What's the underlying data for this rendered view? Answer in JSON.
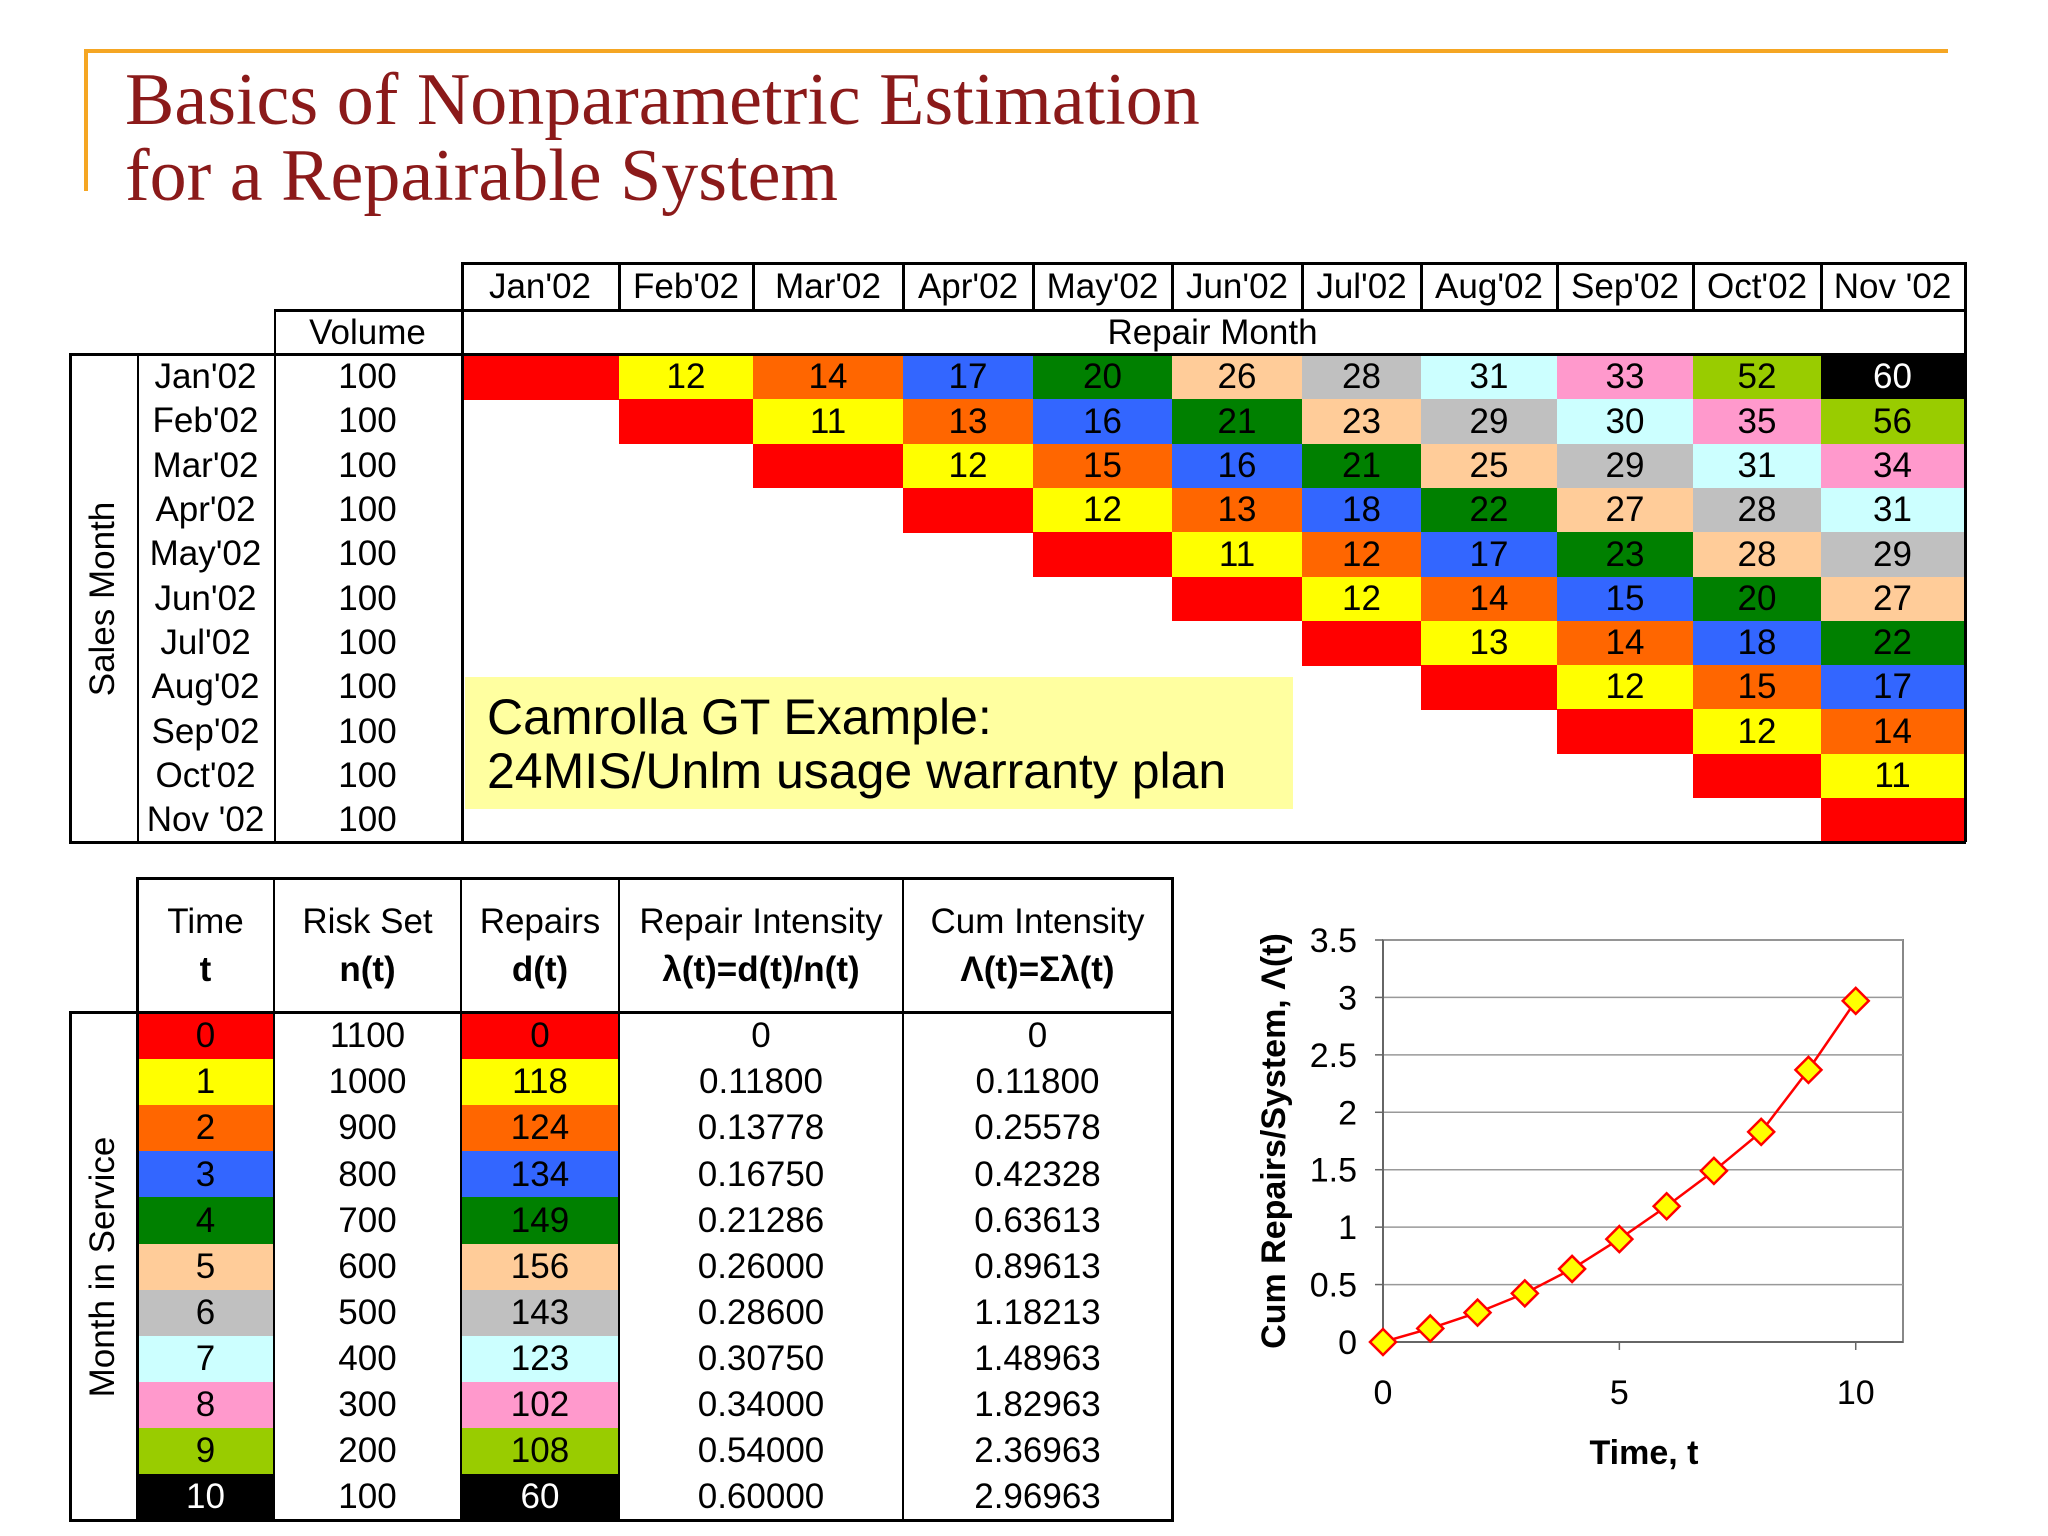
{
  "title": {
    "line1": "Basics of Nonparametric Estimation",
    "line2": "for a Repairable System"
  },
  "age_colors": [
    "#FF0000",
    "#FFFF00",
    "#FF6600",
    "#3366FF",
    "#008000",
    "#FFCC99",
    "#C0C0C0",
    "#CCFFFF",
    "#FF99CC",
    "#99CC00",
    "#000000"
  ],
  "top_table": {
    "months": [
      "Jan'02",
      "Feb'02",
      "Mar'02",
      "Apr'02",
      "May'02",
      "Jun'02",
      "Jul'02",
      "Aug'02",
      "Sep'02",
      "Oct'02",
      "Nov '02"
    ],
    "repair_month_label": "Repair Month",
    "volume_label": "Volume",
    "sales_month_label": "Sales Month",
    "rows": [
      {
        "month": "Jan'02",
        "volume": "100",
        "repairs": [
          null,
          12,
          14,
          17,
          20,
          26,
          28,
          31,
          33,
          52,
          60
        ]
      },
      {
        "month": "Feb'02",
        "volume": "100",
        "repairs": [
          null,
          11,
          13,
          16,
          21,
          23,
          29,
          30,
          35,
          56
        ]
      },
      {
        "month": "Mar'02",
        "volume": "100",
        "repairs": [
          null,
          12,
          15,
          16,
          21,
          25,
          29,
          31,
          34
        ]
      },
      {
        "month": "Apr'02",
        "volume": "100",
        "repairs": [
          null,
          12,
          13,
          18,
          22,
          27,
          28,
          31
        ]
      },
      {
        "month": "May'02",
        "volume": "100",
        "repairs": [
          null,
          11,
          12,
          17,
          23,
          28,
          29
        ]
      },
      {
        "month": "Jun'02",
        "volume": "100",
        "repairs": [
          null,
          12,
          14,
          15,
          20,
          27
        ]
      },
      {
        "month": "Jul'02",
        "volume": "100",
        "repairs": [
          null,
          13,
          14,
          18,
          22
        ]
      },
      {
        "month": "Aug'02",
        "volume": "100",
        "repairs": [
          null,
          12,
          15,
          17
        ]
      },
      {
        "month": "Sep'02",
        "volume": "100",
        "repairs": [
          null,
          12,
          14
        ]
      },
      {
        "month": "Oct'02",
        "volume": "100",
        "repairs": [
          null,
          11
        ]
      },
      {
        "month": "Nov '02",
        "volume": "100",
        "repairs": [
          null
        ]
      }
    ]
  },
  "note": {
    "line1": "Camrolla GT Example:",
    "line2": "24MIS/Unlm usage warranty plan"
  },
  "bottom_table": {
    "side_label": "Month in Service",
    "headers": [
      {
        "line1": "Time",
        "line2": "t"
      },
      {
        "line1": "Risk Set",
        "line2": "n(t)"
      },
      {
        "line1": "Repairs",
        "line2": "d(t)"
      },
      {
        "line1": "Repair Intensity",
        "line2": "λ(t)=d(t)/n(t)"
      },
      {
        "line1": "Cum Intensity",
        "line2": "Λ(t)=Σλ(t)"
      }
    ],
    "rows": [
      {
        "t": "0",
        "n": "1100",
        "d": "0",
        "intensity": "0",
        "cum": "0"
      },
      {
        "t": "1",
        "n": "1000",
        "d": "118",
        "intensity": "0.11800",
        "cum": "0.11800"
      },
      {
        "t": "2",
        "n": "900",
        "d": "124",
        "intensity": "0.13778",
        "cum": "0.25578"
      },
      {
        "t": "3",
        "n": "800",
        "d": "134",
        "intensity": "0.16750",
        "cum": "0.42328"
      },
      {
        "t": "4",
        "n": "700",
        "d": "149",
        "intensity": "0.21286",
        "cum": "0.63613"
      },
      {
        "t": "5",
        "n": "600",
        "d": "156",
        "intensity": "0.26000",
        "cum": "0.89613"
      },
      {
        "t": "6",
        "n": "500",
        "d": "143",
        "intensity": "0.28600",
        "cum": "1.18213"
      },
      {
        "t": "7",
        "n": "400",
        "d": "123",
        "intensity": "0.30750",
        "cum": "1.48963"
      },
      {
        "t": "8",
        "n": "300",
        "d": "102",
        "intensity": "0.34000",
        "cum": "1.82963"
      },
      {
        "t": "9",
        "n": "200",
        "d": "108",
        "intensity": "0.54000",
        "cum": "2.36963"
      },
      {
        "t": "10",
        "n": "100",
        "d": "60",
        "intensity": "0.60000",
        "cum": "2.96963"
      }
    ]
  },
  "chart_data": {
    "type": "line",
    "x": [
      0,
      1,
      2,
      3,
      4,
      5,
      6,
      7,
      8,
      9,
      10
    ],
    "y": [
      0,
      0.118,
      0.25578,
      0.42328,
      0.63613,
      0.89613,
      1.18213,
      1.48963,
      1.82963,
      2.36963,
      2.96963
    ],
    "xlabel": "Time, t",
    "ylabel": "Cum Repairs/System, Λ(t)",
    "xlim": [
      0,
      11
    ],
    "ylim": [
      0,
      3.5
    ],
    "xticks": [
      "0",
      "5",
      "10"
    ],
    "yticks": [
      "0",
      "0.5",
      "1",
      "1.5",
      "2",
      "2.5",
      "3",
      "3.5"
    ],
    "grid": "horizontal",
    "line_color": "#FF0000",
    "marker": "diamond",
    "marker_fill": "#FFFF00",
    "marker_stroke": "#FF0000"
  }
}
